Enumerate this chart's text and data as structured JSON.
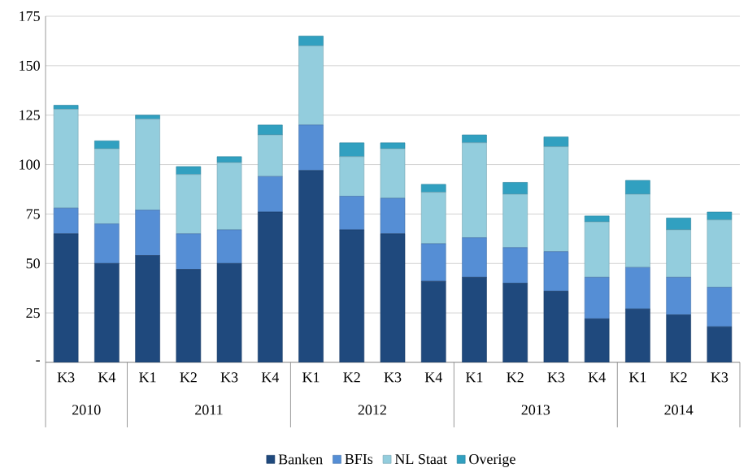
{
  "chart_data": {
    "type": "bar",
    "stacked": true,
    "categories": [
      "K3",
      "K4",
      "K1",
      "K2",
      "K3",
      "K4",
      "K1",
      "K2",
      "K3",
      "K4",
      "K1",
      "K2",
      "K3",
      "K4",
      "K1",
      "K2",
      "K3"
    ],
    "series": [
      {
        "name": "Banken",
        "color": "#1f497d",
        "values": [
          65,
          50,
          54,
          47,
          50,
          76,
          97,
          67,
          65,
          41,
          43,
          40,
          36,
          22,
          27,
          24,
          18
        ]
      },
      {
        "name": "BFIs",
        "color": "#558ed5",
        "values": [
          13,
          20,
          23,
          18,
          17,
          18,
          23,
          17,
          18,
          19,
          20,
          18,
          20,
          21,
          21,
          19,
          20
        ]
      },
      {
        "name": "NL Staat",
        "color": "#93cddd",
        "values": [
          50,
          38,
          46,
          30,
          34,
          21,
          40,
          20,
          25,
          26,
          48,
          27,
          53,
          28,
          37,
          24,
          34
        ]
      },
      {
        "name": "Overige",
        "color": "#31a0c0",
        "values": [
          2,
          4,
          2,
          4,
          3,
          5,
          5,
          7,
          3,
          4,
          4,
          6,
          5,
          3,
          7,
          6,
          4
        ]
      }
    ],
    "ylim": [
      0,
      175
    ],
    "yticks": [
      {
        "value": 0,
        "label": "-"
      },
      25,
      50,
      75,
      100,
      125,
      150,
      175
    ],
    "x2lim": [
      2010,
      2014.25
    ],
    "x2ticks": [
      {
        "value": 2010.25,
        "label": "2010"
      },
      2011,
      2012,
      2013,
      {
        "value": 2013.875,
        "label": "2014"
      }
    ],
    "grid": "y",
    "legend": "bottom"
  }
}
